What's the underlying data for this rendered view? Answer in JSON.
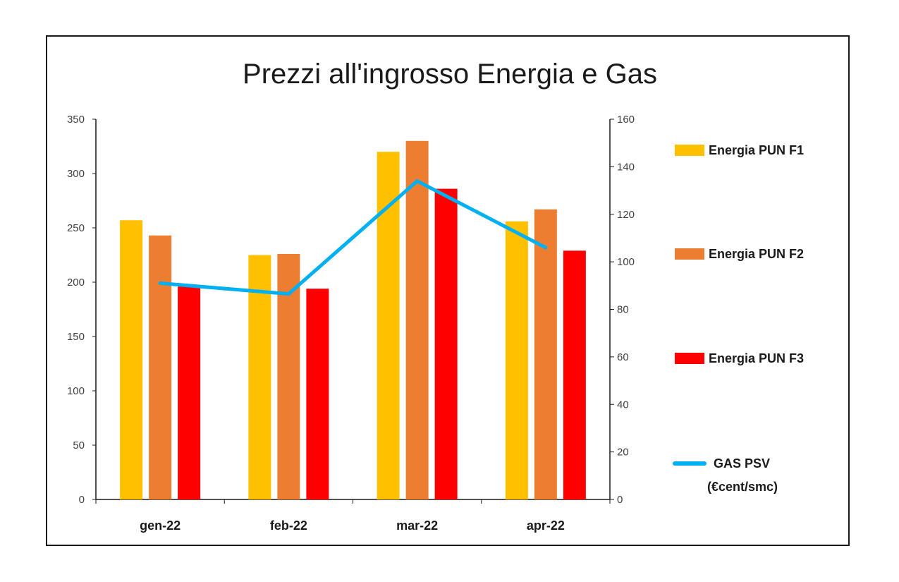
{
  "chart_data": {
    "type": "bar",
    "title": "Prezzi all'ingrosso Energia e Gas",
    "categories": [
      "gen-22",
      "feb-22",
      "mar-22",
      "apr-22"
    ],
    "series": [
      {
        "name": "Energia PUN F1",
        "type": "bar",
        "axis": "left",
        "color": "#FFC000",
        "values": [
          257,
          225,
          320,
          256
        ]
      },
      {
        "name": "Energia PUN F2",
        "type": "bar",
        "axis": "left",
        "color": "#ED7D31",
        "values": [
          243,
          226,
          330,
          267
        ]
      },
      {
        "name": "Energia PUN F3",
        "type": "bar",
        "axis": "left",
        "color": "#FF0000",
        "values": [
          196,
          194,
          286,
          229
        ]
      },
      {
        "name": "GAS PSV",
        "name_line2": "(€cent/smc)",
        "type": "line",
        "axis": "right",
        "color": "#00B0F0",
        "values": [
          91,
          86.5,
          134,
          106
        ]
      }
    ],
    "y_left": {
      "min": 0,
      "max": 350,
      "ticks": [
        0,
        50,
        100,
        150,
        200,
        250,
        300,
        350
      ]
    },
    "y_right": {
      "min": 0,
      "max": 160,
      "ticks": [
        0,
        20,
        40,
        60,
        80,
        100,
        120,
        140,
        160
      ]
    },
    "grid": false,
    "legend_position": "right"
  }
}
